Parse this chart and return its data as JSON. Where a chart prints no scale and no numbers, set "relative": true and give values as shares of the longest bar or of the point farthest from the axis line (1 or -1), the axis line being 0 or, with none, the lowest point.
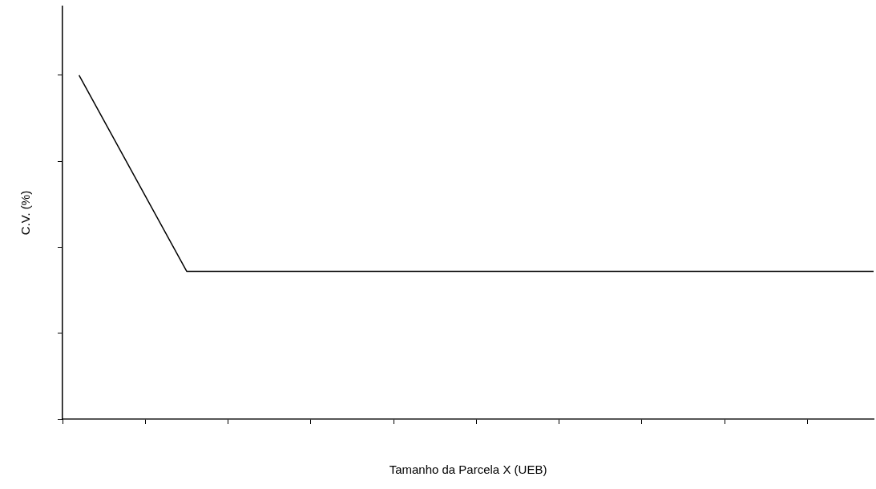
{
  "chart_data": {
    "type": "line",
    "relative": true,
    "xlabel": "Tamanho da Parcela X (UEB)",
    "ylabel": "C.V. (%)",
    "categories": [
      null,
      null,
      null,
      null,
      null,
      null,
      null,
      null,
      null,
      null,
      null,
      null,
      null,
      null,
      null,
      null,
      null,
      null,
      null,
      null,
      null,
      null,
      null,
      null,
      null,
      null,
      null,
      null,
      null,
      null,
      null,
      null,
      null,
      null,
      null,
      null,
      null,
      null,
      null,
      null,
      null,
      null,
      null,
      null,
      null,
      null,
      null,
      null,
      null,
      null,
      null,
      null,
      null,
      null,
      null,
      null,
      null,
      null,
      null,
      null,
      null,
      null,
      null,
      null,
      null,
      null,
      null,
      null,
      null,
      null,
      null,
      null,
      null,
      null,
      null,
      null,
      null,
      null,
      null,
      null,
      null,
      null,
      null,
      null,
      null,
      null,
      null,
      null,
      null,
      null,
      null,
      null,
      null,
      null,
      null,
      null,
      null,
      null,
      null
    ],
    "series": [
      {
        "color": "#000000",
        "values": [
          null,
          null,
          1,
          null,
          null,
          null,
          null,
          null,
          null,
          null,
          null,
          null,
          null,
          null,
          null,
          0.43,
          null,
          null,
          null,
          null,
          null,
          null,
          null,
          null,
          null,
          null,
          null,
          null,
          null,
          null,
          null,
          null,
          null,
          null,
          null,
          null,
          null,
          null,
          null,
          null,
          null,
          null,
          null,
          null,
          null,
          null,
          null,
          null,
          null,
          null,
          null,
          null,
          null,
          null,
          null,
          null,
          null,
          null,
          null,
          null,
          null,
          null,
          null,
          null,
          null,
          null,
          null,
          null,
          null,
          null,
          null,
          null,
          null,
          null,
          null,
          null,
          null,
          null,
          null,
          null,
          null,
          null,
          null,
          null,
          null,
          null,
          null,
          null,
          null,
          null,
          null,
          null,
          null,
          null,
          null,
          null,
          null,
          null,
          0.43
        ]
      }
    ],
    "legend": false,
    "grid": false,
    "marker": "none",
    "line_style": "solid"
  }
}
